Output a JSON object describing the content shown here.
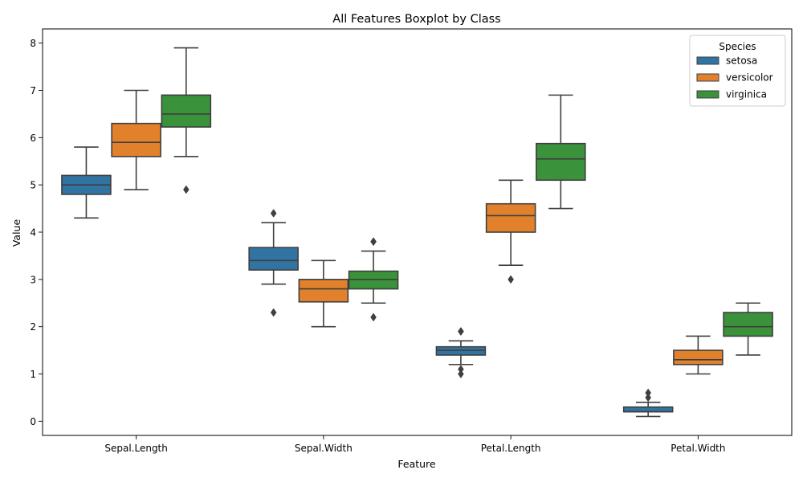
{
  "chart_data": {
    "type": "boxplot",
    "title": "All Features Boxplot by Class",
    "xlabel": "Feature",
    "ylabel": "Value",
    "ylim": [
      -0.3,
      8.3
    ],
    "yticks": [
      0,
      1,
      2,
      3,
      4,
      5,
      6,
      7,
      8
    ],
    "grid": false,
    "categories": [
      "Sepal.Length",
      "Sepal.Width",
      "Petal.Length",
      "Petal.Width"
    ],
    "legend": {
      "title": "Species",
      "position": "top-right"
    },
    "series": [
      {
        "name": "setosa",
        "color": "#3274a1",
        "boxes": [
          {
            "whislo": 4.3,
            "q1": 4.8,
            "med": 5.0,
            "q3": 5.2,
            "whishi": 5.8,
            "fliers": []
          },
          {
            "whislo": 2.9,
            "q1": 3.2,
            "med": 3.4,
            "q3": 3.675,
            "whishi": 4.2,
            "fliers": [
              4.4,
              2.3
            ]
          },
          {
            "whislo": 1.2,
            "q1": 1.4,
            "med": 1.5,
            "q3": 1.575,
            "whishi": 1.7,
            "fliers": [
              1.9,
              1.9,
              1.1,
              1.0
            ]
          },
          {
            "whislo": 0.1,
            "q1": 0.2,
            "med": 0.2,
            "q3": 0.3,
            "whishi": 0.4,
            "fliers": [
              0.6,
              0.5
            ]
          }
        ]
      },
      {
        "name": "versicolor",
        "color": "#e1812c",
        "boxes": [
          {
            "whislo": 4.9,
            "q1": 5.6,
            "med": 5.9,
            "q3": 6.3,
            "whishi": 7.0,
            "fliers": []
          },
          {
            "whislo": 2.0,
            "q1": 2.525,
            "med": 2.8,
            "q3": 3.0,
            "whishi": 3.4,
            "fliers": []
          },
          {
            "whislo": 3.3,
            "q1": 4.0,
            "med": 4.35,
            "q3": 4.6,
            "whishi": 5.1,
            "fliers": [
              3.0
            ]
          },
          {
            "whislo": 1.0,
            "q1": 1.2,
            "med": 1.3,
            "q3": 1.5,
            "whishi": 1.8,
            "fliers": []
          }
        ]
      },
      {
        "name": "virginica",
        "color": "#3a923a",
        "boxes": [
          {
            "whislo": 5.6,
            "q1": 6.225,
            "med": 6.5,
            "q3": 6.9,
            "whishi": 7.9,
            "fliers": [
              4.9
            ]
          },
          {
            "whislo": 2.5,
            "q1": 2.8,
            "med": 3.0,
            "q3": 3.175,
            "whishi": 3.6,
            "fliers": [
              3.8,
              3.8,
              2.2
            ]
          },
          {
            "whislo": 4.5,
            "q1": 5.1,
            "med": 5.55,
            "q3": 5.875,
            "whishi": 6.9,
            "fliers": []
          },
          {
            "whislo": 1.4,
            "q1": 1.8,
            "med": 2.0,
            "q3": 2.3,
            "whishi": 2.5,
            "fliers": []
          }
        ]
      }
    ]
  }
}
